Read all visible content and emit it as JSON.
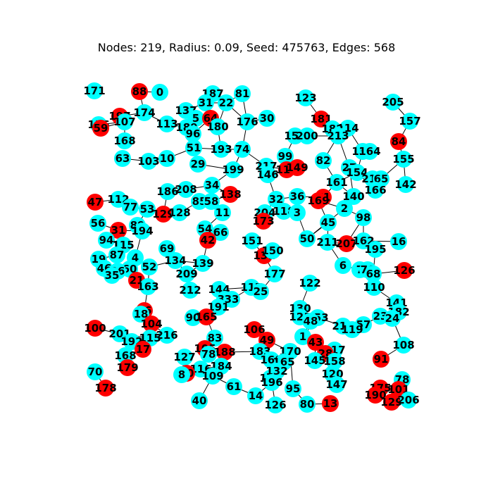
{
  "title": "Nodes: 219, Radius: 0.09, Seed: 475763, Edges: 568",
  "colors": {
    "node_primary": "#00FFFF",
    "node_secondary": "#FF0000",
    "edge": "#000000",
    "label": "#000000"
  },
  "nodes": [
    {
      "id": "171",
      "color": "cyan"
    },
    {
      "id": "88",
      "color": "red"
    },
    {
      "id": "0",
      "color": "cyan"
    },
    {
      "id": "187",
      "color": "cyan"
    },
    {
      "id": "81",
      "color": "cyan"
    },
    {
      "id": "123",
      "color": "cyan"
    },
    {
      "id": "205",
      "color": "cyan"
    },
    {
      "id": "137",
      "color": "cyan"
    },
    {
      "id": "31",
      "color": "cyan"
    },
    {
      "id": "22",
      "color": "cyan"
    },
    {
      "id": "197",
      "color": "red"
    },
    {
      "id": "174",
      "color": "cyan"
    },
    {
      "id": "156",
      "color": "cyan"
    },
    {
      "id": "59",
      "color": "red"
    },
    {
      "id": "107",
      "color": "cyan"
    },
    {
      "id": "113",
      "color": "cyan"
    },
    {
      "id": "5",
      "color": "cyan"
    },
    {
      "id": "64",
      "color": "red"
    },
    {
      "id": "189",
      "color": "cyan"
    },
    {
      "id": "96",
      "color": "cyan"
    },
    {
      "id": "180",
      "color": "cyan"
    },
    {
      "id": "176",
      "color": "cyan"
    },
    {
      "id": "30",
      "color": "cyan"
    },
    {
      "id": "181",
      "color": "red"
    },
    {
      "id": "157",
      "color": "cyan"
    },
    {
      "id": "168",
      "color": "cyan"
    },
    {
      "id": "114",
      "color": "cyan"
    },
    {
      "id": "182",
      "color": "cyan"
    },
    {
      "id": "213",
      "color": "cyan"
    },
    {
      "id": "84",
      "color": "red"
    },
    {
      "id": "159",
      "color": "cyan"
    },
    {
      "id": "200",
      "color": "cyan"
    },
    {
      "id": "51",
      "color": "cyan"
    },
    {
      "id": "193",
      "color": "cyan"
    },
    {
      "id": "74",
      "color": "cyan"
    },
    {
      "id": "99",
      "color": "cyan"
    },
    {
      "id": "136",
      "color": "cyan"
    },
    {
      "id": "164",
      "color": "cyan"
    },
    {
      "id": "63",
      "color": "cyan"
    },
    {
      "id": "103",
      "color": "cyan"
    },
    {
      "id": "10",
      "color": "cyan"
    },
    {
      "id": "82",
      "color": "cyan"
    },
    {
      "id": "155",
      "color": "cyan"
    },
    {
      "id": "29",
      "color": "cyan"
    },
    {
      "id": "199",
      "color": "cyan"
    },
    {
      "id": "217",
      "color": "cyan"
    },
    {
      "id": "110b",
      "label": "110",
      "color": "red"
    },
    {
      "id": "149",
      "color": "red"
    },
    {
      "id": "27",
      "color": "cyan"
    },
    {
      "id": "154",
      "color": "cyan"
    },
    {
      "id": "146",
      "color": "cyan"
    },
    {
      "id": "161",
      "color": "cyan"
    },
    {
      "id": "215",
      "color": "cyan"
    },
    {
      "id": "65",
      "color": "cyan"
    },
    {
      "id": "142",
      "color": "cyan"
    },
    {
      "id": "186",
      "color": "cyan"
    },
    {
      "id": "208",
      "color": "cyan"
    },
    {
      "id": "34",
      "color": "cyan"
    },
    {
      "id": "138",
      "color": "red"
    },
    {
      "id": "166",
      "color": "cyan"
    },
    {
      "id": "47",
      "color": "red"
    },
    {
      "id": "112",
      "color": "cyan"
    },
    {
      "id": "85",
      "color": "cyan"
    },
    {
      "id": "58",
      "color": "cyan"
    },
    {
      "id": "32",
      "color": "cyan"
    },
    {
      "id": "36",
      "color": "cyan"
    },
    {
      "id": "71",
      "color": "red"
    },
    {
      "id": "140",
      "color": "cyan"
    },
    {
      "id": "77",
      "color": "cyan"
    },
    {
      "id": "53",
      "color": "cyan"
    },
    {
      "id": "129",
      "color": "red"
    },
    {
      "id": "128",
      "color": "cyan"
    },
    {
      "id": "11",
      "color": "cyan"
    },
    {
      "id": "204",
      "color": "cyan"
    },
    {
      "id": "118",
      "color": "cyan"
    },
    {
      "id": "3",
      "color": "cyan"
    },
    {
      "id": "169",
      "color": "red"
    },
    {
      "id": "2",
      "color": "cyan"
    },
    {
      "id": "98",
      "color": "cyan"
    },
    {
      "id": "56",
      "color": "cyan"
    },
    {
      "id": "173",
      "color": "red"
    },
    {
      "id": "45",
      "color": "cyan"
    },
    {
      "id": "31b",
      "label": "31",
      "color": "red"
    },
    {
      "id": "89",
      "color": "cyan"
    },
    {
      "id": "194",
      "color": "cyan"
    },
    {
      "id": "54",
      "color": "cyan"
    },
    {
      "id": "66",
      "color": "cyan"
    },
    {
      "id": "94",
      "color": "cyan"
    },
    {
      "id": "42",
      "color": "red"
    },
    {
      "id": "151",
      "color": "cyan"
    },
    {
      "id": "50",
      "color": "cyan"
    },
    {
      "id": "211",
      "color": "cyan"
    },
    {
      "id": "207",
      "color": "red"
    },
    {
      "id": "162",
      "color": "cyan"
    },
    {
      "id": "16",
      "color": "cyan"
    },
    {
      "id": "115",
      "color": "cyan"
    },
    {
      "id": "195",
      "color": "cyan"
    },
    {
      "id": "87",
      "color": "cyan"
    },
    {
      "id": "69",
      "color": "cyan"
    },
    {
      "id": "131",
      "color": "red"
    },
    {
      "id": "150",
      "color": "cyan"
    },
    {
      "id": "19",
      "color": "cyan"
    },
    {
      "id": "4",
      "color": "cyan"
    },
    {
      "id": "46",
      "color": "cyan"
    },
    {
      "id": "60",
      "color": "cyan"
    },
    {
      "id": "52",
      "color": "cyan"
    },
    {
      "id": "134",
      "color": "cyan"
    },
    {
      "id": "139",
      "color": "cyan"
    },
    {
      "id": "96b",
      "label": "96",
      "color": "cyan"
    },
    {
      "id": "35",
      "color": "cyan"
    },
    {
      "id": "6",
      "color": "cyan"
    },
    {
      "id": "7",
      "color": "cyan"
    },
    {
      "id": "76",
      "color": "cyan"
    },
    {
      "id": "68",
      "color": "cyan"
    },
    {
      "id": "126",
      "color": "red"
    },
    {
      "id": "177",
      "color": "cyan"
    },
    {
      "id": "21",
      "color": "red"
    },
    {
      "id": "209",
      "color": "cyan"
    },
    {
      "id": "163",
      "color": "cyan"
    },
    {
      "id": "122",
      "color": "cyan"
    },
    {
      "id": "212",
      "color": "cyan"
    },
    {
      "id": "144",
      "color": "cyan"
    },
    {
      "id": "117",
      "color": "cyan"
    },
    {
      "id": "25",
      "color": "cyan"
    },
    {
      "id": "110",
      "color": "cyan"
    },
    {
      "id": "141",
      "color": "cyan"
    },
    {
      "id": "39",
      "color": "cyan"
    },
    {
      "id": "33",
      "color": "cyan"
    },
    {
      "id": "191",
      "color": "cyan"
    },
    {
      "id": "130",
      "color": "cyan"
    },
    {
      "id": "86",
      "color": "red"
    },
    {
      "id": "18",
      "color": "cyan"
    },
    {
      "id": "23",
      "color": "cyan"
    },
    {
      "id": "182b",
      "label": "182",
      "color": "cyan"
    },
    {
      "id": "90",
      "color": "cyan"
    },
    {
      "id": "165",
      "color": "red"
    },
    {
      "id": "121",
      "color": "cyan"
    },
    {
      "id": "153",
      "color": "cyan"
    },
    {
      "id": "48",
      "color": "cyan"
    },
    {
      "id": "210",
      "color": "cyan"
    },
    {
      "id": "57",
      "color": "cyan"
    },
    {
      "id": "24",
      "color": "cyan"
    },
    {
      "id": "119",
      "color": "cyan"
    },
    {
      "id": "104",
      "color": "red"
    },
    {
      "id": "100",
      "color": "red"
    },
    {
      "id": "201",
      "color": "cyan"
    },
    {
      "id": "216",
      "color": "cyan"
    },
    {
      "id": "106",
      "color": "red"
    },
    {
      "id": "83",
      "color": "cyan"
    },
    {
      "id": "49",
      "color": "red"
    },
    {
      "id": "1",
      "color": "cyan"
    },
    {
      "id": "43",
      "color": "red"
    },
    {
      "id": "192",
      "color": "cyan"
    },
    {
      "id": "115b",
      "label": "115",
      "color": "cyan"
    },
    {
      "id": "17",
      "color": "red"
    },
    {
      "id": "108",
      "color": "cyan"
    },
    {
      "id": "105",
      "color": "red"
    },
    {
      "id": "188",
      "color": "red"
    },
    {
      "id": "183",
      "color": "cyan"
    },
    {
      "id": "170",
      "color": "cyan"
    },
    {
      "id": "217b",
      "label": "217",
      "color": "cyan"
    },
    {
      "id": "28",
      "color": "red"
    },
    {
      "id": "158",
      "color": "cyan"
    },
    {
      "id": "145",
      "color": "cyan"
    },
    {
      "id": "91",
      "color": "red"
    },
    {
      "id": "168b",
      "label": "168",
      "color": "cyan"
    },
    {
      "id": "179",
      "color": "red"
    },
    {
      "id": "127",
      "color": "cyan"
    },
    {
      "id": "78b",
      "label": "78",
      "color": "cyan"
    },
    {
      "id": "116",
      "color": "cyan"
    },
    {
      "id": "184",
      "color": "cyan"
    },
    {
      "id": "160",
      "color": "cyan"
    },
    {
      "id": "165b",
      "label": "165",
      "color": "cyan"
    },
    {
      "id": "120",
      "color": "cyan"
    },
    {
      "id": "78",
      "color": "cyan"
    },
    {
      "id": "70",
      "color": "cyan"
    },
    {
      "id": "20",
      "color": "red"
    },
    {
      "id": "8",
      "color": "cyan"
    },
    {
      "id": "109",
      "color": "cyan"
    },
    {
      "id": "148",
      "color": "cyan"
    },
    {
      "id": "132",
      "color": "cyan"
    },
    {
      "id": "147",
      "color": "cyan"
    },
    {
      "id": "175",
      "color": "red"
    },
    {
      "id": "101",
      "color": "red"
    },
    {
      "id": "178",
      "color": "red"
    },
    {
      "id": "61",
      "color": "cyan"
    },
    {
      "id": "14",
      "color": "cyan"
    },
    {
      "id": "196",
      "color": "cyan"
    },
    {
      "id": "95",
      "color": "cyan"
    },
    {
      "id": "190",
      "color": "red"
    },
    {
      "id": "129b",
      "label": "129",
      "color": "red"
    },
    {
      "id": "206",
      "color": "cyan"
    },
    {
      "id": "40",
      "color": "cyan"
    },
    {
      "id": "126b",
      "label": "126",
      "color": "cyan"
    },
    {
      "id": "80",
      "color": "cyan"
    },
    {
      "id": "13",
      "color": "red"
    }
  ]
}
